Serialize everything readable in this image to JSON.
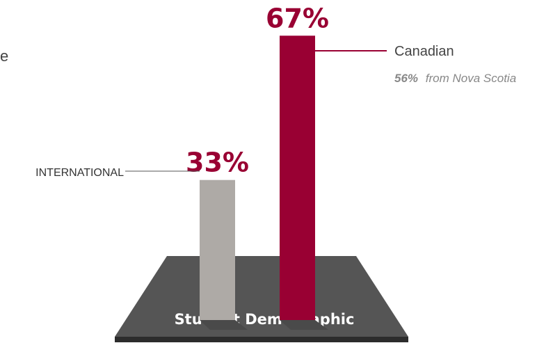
{
  "chart_data": {
    "type": "bar",
    "title": "Student Demographic",
    "categories": [
      "INTERNATIONAL",
      "Canadian"
    ],
    "values": [
      33,
      67
    ],
    "value_labels": [
      "33%",
      "67%"
    ],
    "ylim": [
      0,
      100
    ],
    "unit": "%",
    "colors": [
      "#aeaaa6",
      "#990033"
    ],
    "label_color": "#990033",
    "platform_color": "#555555",
    "annotations": {
      "canadian_sub_value": "56%",
      "canadian_sub_text": "from Nova Scotia"
    },
    "grid": false,
    "legend": "none"
  },
  "edge_text": "e"
}
